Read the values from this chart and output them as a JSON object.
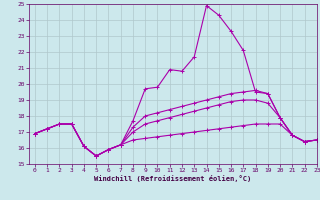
{
  "x": [
    0,
    1,
    2,
    3,
    4,
    5,
    6,
    7,
    8,
    9,
    10,
    11,
    12,
    13,
    14,
    15,
    16,
    17,
    18,
    19,
    20,
    21,
    22,
    23
  ],
  "line1": [
    16.9,
    17.2,
    17.5,
    17.5,
    16.1,
    15.5,
    15.9,
    16.2,
    17.7,
    19.7,
    19.8,
    20.9,
    20.8,
    21.7,
    24.9,
    24.3,
    23.3,
    22.1,
    19.5,
    19.4,
    17.9,
    16.8,
    16.4,
    16.5
  ],
  "line2": [
    16.9,
    17.2,
    17.5,
    17.5,
    16.1,
    15.5,
    15.9,
    16.2,
    17.3,
    18.0,
    18.2,
    18.4,
    18.6,
    18.8,
    19.0,
    19.2,
    19.4,
    19.5,
    19.6,
    19.4,
    17.9,
    16.8,
    16.4,
    16.5
  ],
  "line3": [
    16.9,
    17.2,
    17.5,
    17.5,
    16.1,
    15.5,
    15.9,
    16.2,
    17.0,
    17.5,
    17.7,
    17.9,
    18.1,
    18.3,
    18.5,
    18.7,
    18.9,
    19.0,
    19.0,
    18.8,
    17.9,
    16.8,
    16.4,
    16.5
  ],
  "line4": [
    16.9,
    17.2,
    17.5,
    17.5,
    16.1,
    15.5,
    15.9,
    16.2,
    16.5,
    16.6,
    16.7,
    16.8,
    16.9,
    17.0,
    17.1,
    17.2,
    17.3,
    17.4,
    17.5,
    17.5,
    17.5,
    16.8,
    16.4,
    16.5
  ],
  "bg_color": "#cce8ec",
  "grid_color": "#b0c8cc",
  "line_color": "#aa00aa",
  "xlabel": "Windchill (Refroidissement éolien,°C)",
  "ylim": [
    15,
    25
  ],
  "xlim": [
    -0.5,
    23
  ],
  "yticks": [
    15,
    16,
    17,
    18,
    19,
    20,
    21,
    22,
    23,
    24,
    25
  ],
  "xticks": [
    0,
    1,
    2,
    3,
    4,
    5,
    6,
    7,
    8,
    9,
    10,
    11,
    12,
    13,
    14,
    15,
    16,
    17,
    18,
    19,
    20,
    21,
    22,
    23
  ]
}
